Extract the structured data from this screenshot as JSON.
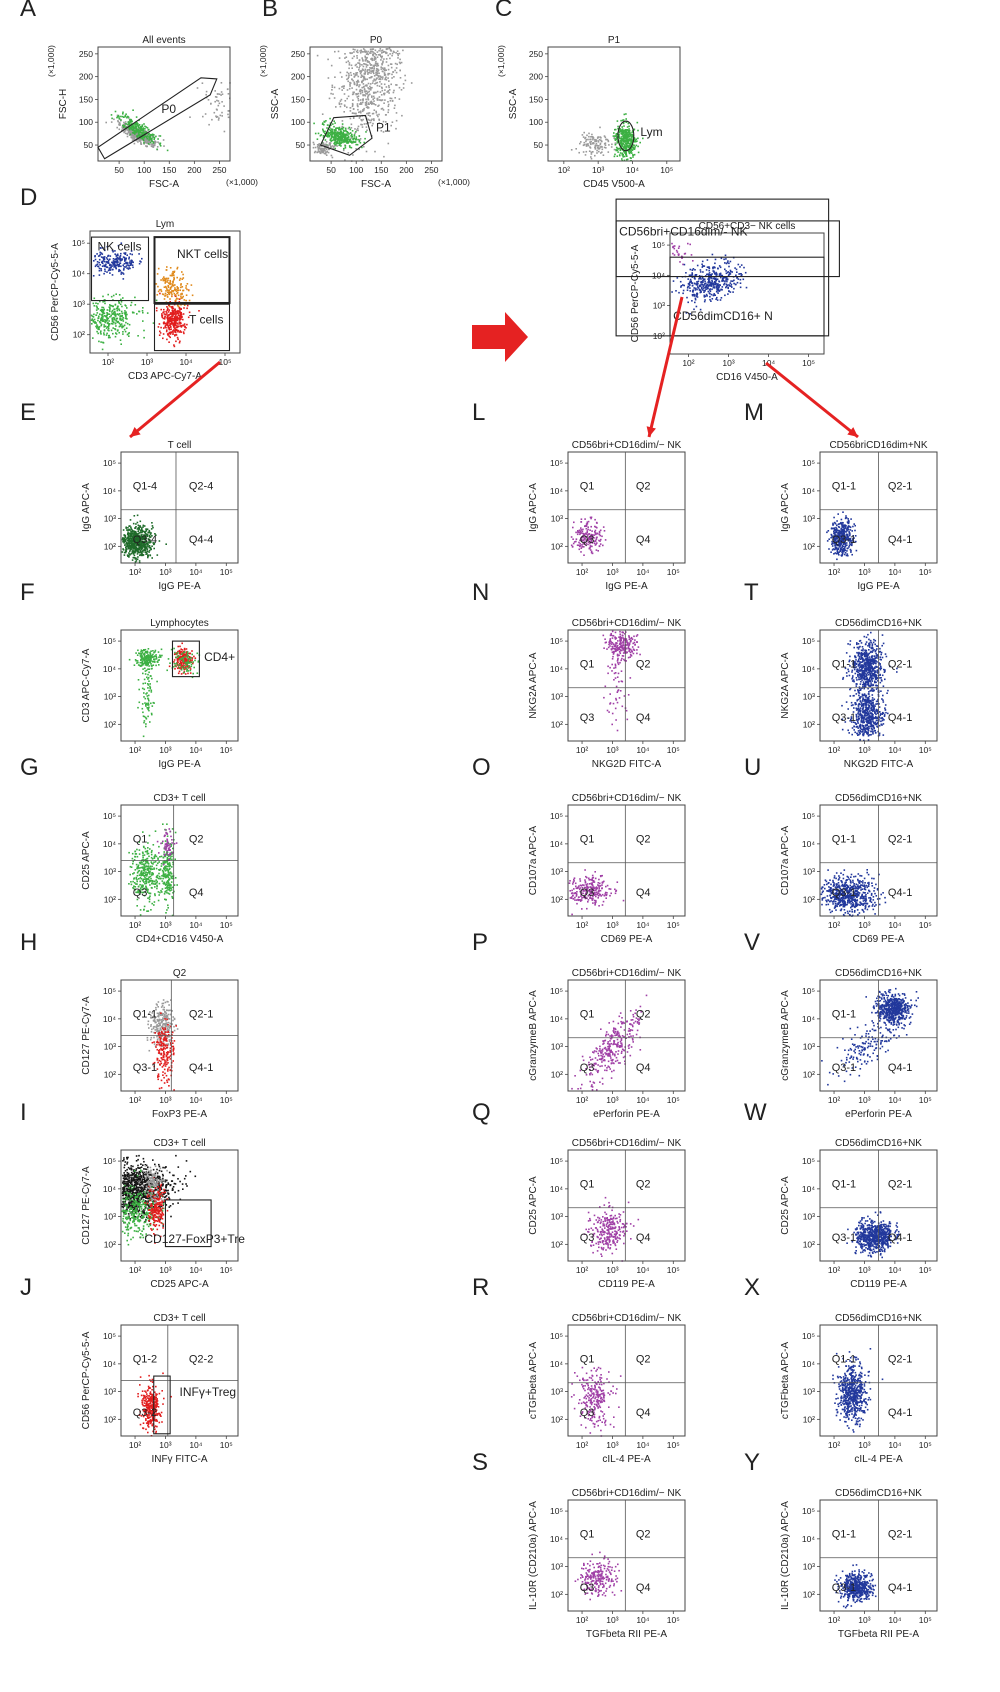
{
  "colors": {
    "green": "#3cb043",
    "darkgreen": "#1f6b2a",
    "blue": "#22389c",
    "purple": "#a040a6",
    "red": "#e11d1d",
    "orange": "#e08a1c",
    "grey": "#9a9a9a",
    "black": "#151515",
    "arrow": "#e52222"
  },
  "panels": [
    {
      "id": "A",
      "title": "All events",
      "xlabel": "FSC-A",
      "ylabel": "FSC-H",
      "xunit": "(×1,000)",
      "yunit": "(×1,000)",
      "xticks": [
        "50",
        "100",
        "150",
        "200",
        "250"
      ],
      "yticks": [
        "250",
        "200",
        "150",
        "100",
        "50"
      ],
      "gates": [
        "P0"
      ],
      "quads": []
    },
    {
      "id": "B",
      "title": "P0",
      "xlabel": "FSC-A",
      "ylabel": "SSC-A",
      "xunit": "(×1,000)",
      "yunit": "(×1,000)",
      "xticks": [
        "50",
        "100",
        "150",
        "200",
        "250"
      ],
      "yticks": [
        "250",
        "200",
        "150",
        "100",
        "50"
      ],
      "gates": [
        "P1"
      ],
      "quads": []
    },
    {
      "id": "C",
      "title": "P1",
      "xlabel": "CD45 V500-A",
      "ylabel": "SSC-A",
      "xunit": "",
      "yunit": "(×1,000)",
      "xticks": [
        "10²",
        "10³",
        "10⁴",
        "10⁵"
      ],
      "yticks": [
        "250",
        "200",
        "150",
        "100",
        "50"
      ],
      "gates": [
        "Lym"
      ],
      "quads": []
    },
    {
      "id": "D",
      "title": "Lym",
      "xlabel": "CD3 APC-Cy7-A",
      "ylabel": "CD56 PerCP-Cy5-5-A",
      "xticks": [
        "10²",
        "10³",
        "10⁴",
        "10⁵"
      ],
      "yticks": [
        "10⁵",
        "10⁴",
        "10³",
        "10²"
      ],
      "gates": [
        "NK cells",
        "NKT cells",
        "T cells"
      ],
      "quads": []
    },
    {
      "id": "K",
      "title": "CD56+CD3− NK cells",
      "xlabel": "CD16 V450-A",
      "ylabel": "CD56 PerCP-Cy5-5-A",
      "xticks": [
        "10²",
        "10³",
        "10⁴",
        "10⁵"
      ],
      "yticks": [
        "10⁵",
        "10⁴",
        "10³",
        "10²"
      ],
      "gates": [
        "CD56bri+CD16dim/- NK",
        "CD56dimCD16+ N"
      ],
      "quads": []
    },
    {
      "id": "E",
      "title": "T cell",
      "xlabel": "IgG PE-A",
      "ylabel": "IgG APC-A",
      "xticks": [
        "10²",
        "10³",
        "10⁴",
        "10⁵"
      ],
      "yticks": [
        "10⁵",
        "10⁴",
        "10³",
        "10²"
      ],
      "gates": [],
      "quads": [
        "Q1-4",
        "Q2-4",
        "Q3-4",
        "Q4-4"
      ]
    },
    {
      "id": "F",
      "title": "Lymphocytes",
      "xlabel": "IgG PE-A",
      "ylabel": "CD3 APC-Cy7-A",
      "xticks": [
        "10²",
        "10³",
        "10⁴",
        "10⁵"
      ],
      "yticks": [
        "10⁵",
        "10⁴",
        "10³",
        "10²"
      ],
      "gates": [
        "CD4+"
      ],
      "quads": []
    },
    {
      "id": "G",
      "title": "CD3+ T cell",
      "xlabel": "CD4+CD16 V450-A",
      "ylabel": "CD25 APC-A",
      "xticks": [
        "10²",
        "10³",
        "10⁴",
        "10⁵"
      ],
      "yticks": [
        "10⁵",
        "10⁴",
        "10³",
        "10²"
      ],
      "gates": [],
      "quads": [
        "Q1",
        "Q2",
        "Q3",
        "Q4"
      ]
    },
    {
      "id": "H",
      "title": "Q2",
      "xlabel": "FoxP3 PE-A",
      "ylabel": "CD127 PE-Cy7-A",
      "xticks": [
        "10²",
        "10³",
        "10⁴",
        "10⁵"
      ],
      "yticks": [
        "10⁵",
        "10⁴",
        "10³",
        "10²"
      ],
      "gates": [],
      "quads": [
        "Q1-1",
        "Q2-1",
        "Q3-1",
        "Q4-1"
      ]
    },
    {
      "id": "I",
      "title": "CD3+ T cell",
      "xlabel": "CD25 APC-A",
      "ylabel": "CD127 PE-Cy7-A",
      "xticks": [
        "10²",
        "10³",
        "10⁴",
        "10⁵"
      ],
      "yticks": [
        "10⁵",
        "10⁴",
        "10³",
        "10²"
      ],
      "gates": [
        "CD127-FoxP3+Tre"
      ],
      "quads": []
    },
    {
      "id": "J",
      "title": "CD3+ T cell",
      "xlabel": "INFγ FITC-A",
      "ylabel": "CD56 PerCP-Cy5-5-A",
      "xticks": [
        "10²",
        "10³",
        "10⁴",
        "10⁵"
      ],
      "yticks": [
        "10⁵",
        "10⁴",
        "10³",
        "10²"
      ],
      "gates": [
        "INFγ+Treg"
      ],
      "quads": [
        "Q1-2",
        "Q2-2",
        "Q3-2",
        ""
      ]
    },
    {
      "id": "L",
      "title": "CD56bri+CD16dim/− NK",
      "xlabel": "IgG PE-A",
      "ylabel": "IgG APC-A",
      "xticks": [
        "10²",
        "10³",
        "10⁴",
        "10⁵"
      ],
      "yticks": [
        "10⁵",
        "10⁴",
        "10³",
        "10²"
      ],
      "gates": [],
      "quads": [
        "Q1",
        "Q2",
        "Q3",
        "Q4"
      ]
    },
    {
      "id": "M",
      "title": "CD56briCD16dim+NK",
      "xlabel": "IgG PE-A",
      "ylabel": "IgG APC-A",
      "xticks": [
        "10²",
        "10³",
        "10⁴",
        "10⁵"
      ],
      "yticks": [
        "10⁵",
        "10⁴",
        "10³",
        "10²"
      ],
      "gates": [],
      "quads": [
        "Q1-1",
        "Q2-1",
        "Q3-1",
        "Q4-1"
      ]
    },
    {
      "id": "N",
      "title": "CD56bri+CD16dim/− NK",
      "xlabel": "NKG2D FITC-A",
      "ylabel": "NKG2A APC-A",
      "xticks": [
        "10²",
        "10³",
        "10⁴",
        "10⁵"
      ],
      "yticks": [
        "10⁵",
        "10⁴",
        "10³",
        "10²"
      ],
      "gates": [],
      "quads": [
        "Q1",
        "Q2",
        "Q3",
        "Q4"
      ]
    },
    {
      "id": "T",
      "title": "CD56dimCD16+NK",
      "xlabel": "NKG2D FITC-A",
      "ylabel": "NKG2A APC-A",
      "xticks": [
        "10²",
        "10³",
        "10⁴",
        "10⁵"
      ],
      "yticks": [
        "10⁵",
        "10⁴",
        "10³",
        "10²"
      ],
      "gates": [],
      "quads": [
        "Q1-1",
        "Q2-1",
        "Q3-1",
        "Q4-1"
      ]
    },
    {
      "id": "O",
      "title": "CD56bri+CD16dim/− NK",
      "xlabel": "CD69 PE-A",
      "ylabel": "CD107a APC-A",
      "xticks": [
        "10²",
        "10³",
        "10⁴",
        "10⁵"
      ],
      "yticks": [
        "10⁵",
        "10⁴",
        "10³",
        "10²"
      ],
      "gates": [],
      "quads": [
        "Q1",
        "Q2",
        "Q3",
        "Q4"
      ]
    },
    {
      "id": "U",
      "title": "CD56dimCD16+NK",
      "xlabel": "CD69 PE-A",
      "ylabel": "CD107a APC-A",
      "xticks": [
        "10²",
        "10³",
        "10⁴",
        "10⁵"
      ],
      "yticks": [
        "10⁵",
        "10⁴",
        "10³",
        "10²"
      ],
      "gates": [],
      "quads": [
        "Q1-1",
        "Q2-1",
        "Q3-1",
        "Q4-1"
      ]
    },
    {
      "id": "P",
      "title": "CD56bri+CD16dim/− NK",
      "xlabel": "ePerforin PE-A",
      "ylabel": "cGranzymeB APC-A",
      "xticks": [
        "10²",
        "10³",
        "10⁴",
        "10⁵"
      ],
      "yticks": [
        "10⁵",
        "10⁴",
        "10³",
        "10²"
      ],
      "gates": [],
      "quads": [
        "Q1",
        "Q2",
        "Q3",
        "Q4"
      ]
    },
    {
      "id": "V",
      "title": "CD56dimCD16+NK",
      "xlabel": "ePerforin PE-A",
      "ylabel": "cGranzymeB APC-A",
      "xticks": [
        "10²",
        "10³",
        "10⁴",
        "10⁵"
      ],
      "yticks": [
        "10⁵",
        "10⁴",
        "10³",
        "10²"
      ],
      "gates": [],
      "quads": [
        "Q1-1",
        "",
        "Q3-1",
        "Q4-1"
      ]
    },
    {
      "id": "Q",
      "title": "CD56bri+CD16dim/− NK",
      "xlabel": "CD119 PE-A",
      "ylabel": "CD25 APC-A",
      "xticks": [
        "10²",
        "10³",
        "10⁴",
        "10⁵"
      ],
      "yticks": [
        "10⁵",
        "10⁴",
        "10³",
        "10²"
      ],
      "gates": [],
      "quads": [
        "Q1",
        "Q2",
        "Q3",
        "Q4"
      ]
    },
    {
      "id": "W",
      "title": "CD56dimCD16+NK",
      "xlabel": "CD119 PE-A",
      "ylabel": "CD25 APC-A",
      "xticks": [
        "10²",
        "10³",
        "10⁴",
        "10⁵"
      ],
      "yticks": [
        "10⁵",
        "10⁴",
        "10³",
        "10²"
      ],
      "gates": [],
      "quads": [
        "Q1-1",
        "Q2-1",
        "Q3-1",
        "Q4-1"
      ]
    },
    {
      "id": "R",
      "title": "CD56bri+CD16dim/− NK",
      "xlabel": "cIL-4 PE-A",
      "ylabel": "cTGFbeta APC-A",
      "xticks": [
        "10²",
        "10³",
        "10⁴",
        "10⁵"
      ],
      "yticks": [
        "10⁵",
        "10⁴",
        "10³",
        "10²"
      ],
      "gates": [],
      "quads": [
        "Q1",
        "Q2",
        "Q3",
        "Q4"
      ]
    },
    {
      "id": "X",
      "title": "CD56dimCD16+NK",
      "xlabel": "cIL-4 PE-A",
      "ylabel": "cTGFbeta APC-A",
      "xticks": [
        "10²",
        "10³",
        "10⁴",
        "10⁵"
      ],
      "yticks": [
        "10⁵",
        "10⁴",
        "10³",
        "10²"
      ],
      "gates": [],
      "quads": [
        "Q1-1",
        "Q2-1",
        "",
        "Q4-1"
      ]
    },
    {
      "id": "S",
      "title": "CD56bri+CD16dim/− NK",
      "xlabel": "TGFbeta RII PE-A",
      "ylabel": "IL-10R (CD210a) APC-A",
      "xticks": [
        "10²",
        "10³",
        "10⁴",
        "10⁵"
      ],
      "yticks": [
        "10⁵",
        "10⁴",
        "10³",
        "10²"
      ],
      "gates": [],
      "quads": [
        "Q1",
        "Q2",
        "Q3",
        "Q4"
      ]
    },
    {
      "id": "Y",
      "title": "CD56dimCD16+NK",
      "xlabel": "TGFbeta RII PE-A",
      "ylabel": "IL-10R (CD210a) APC-A",
      "xticks": [
        "10²",
        "10³",
        "10⁴",
        "10⁵"
      ],
      "yticks": [
        "10⁵",
        "10⁴",
        "10³",
        "10²"
      ],
      "gates": [],
      "quads": [
        "Q1-1",
        "Q2-1",
        "Q3-1",
        "Q4-1"
      ]
    }
  ]
}
